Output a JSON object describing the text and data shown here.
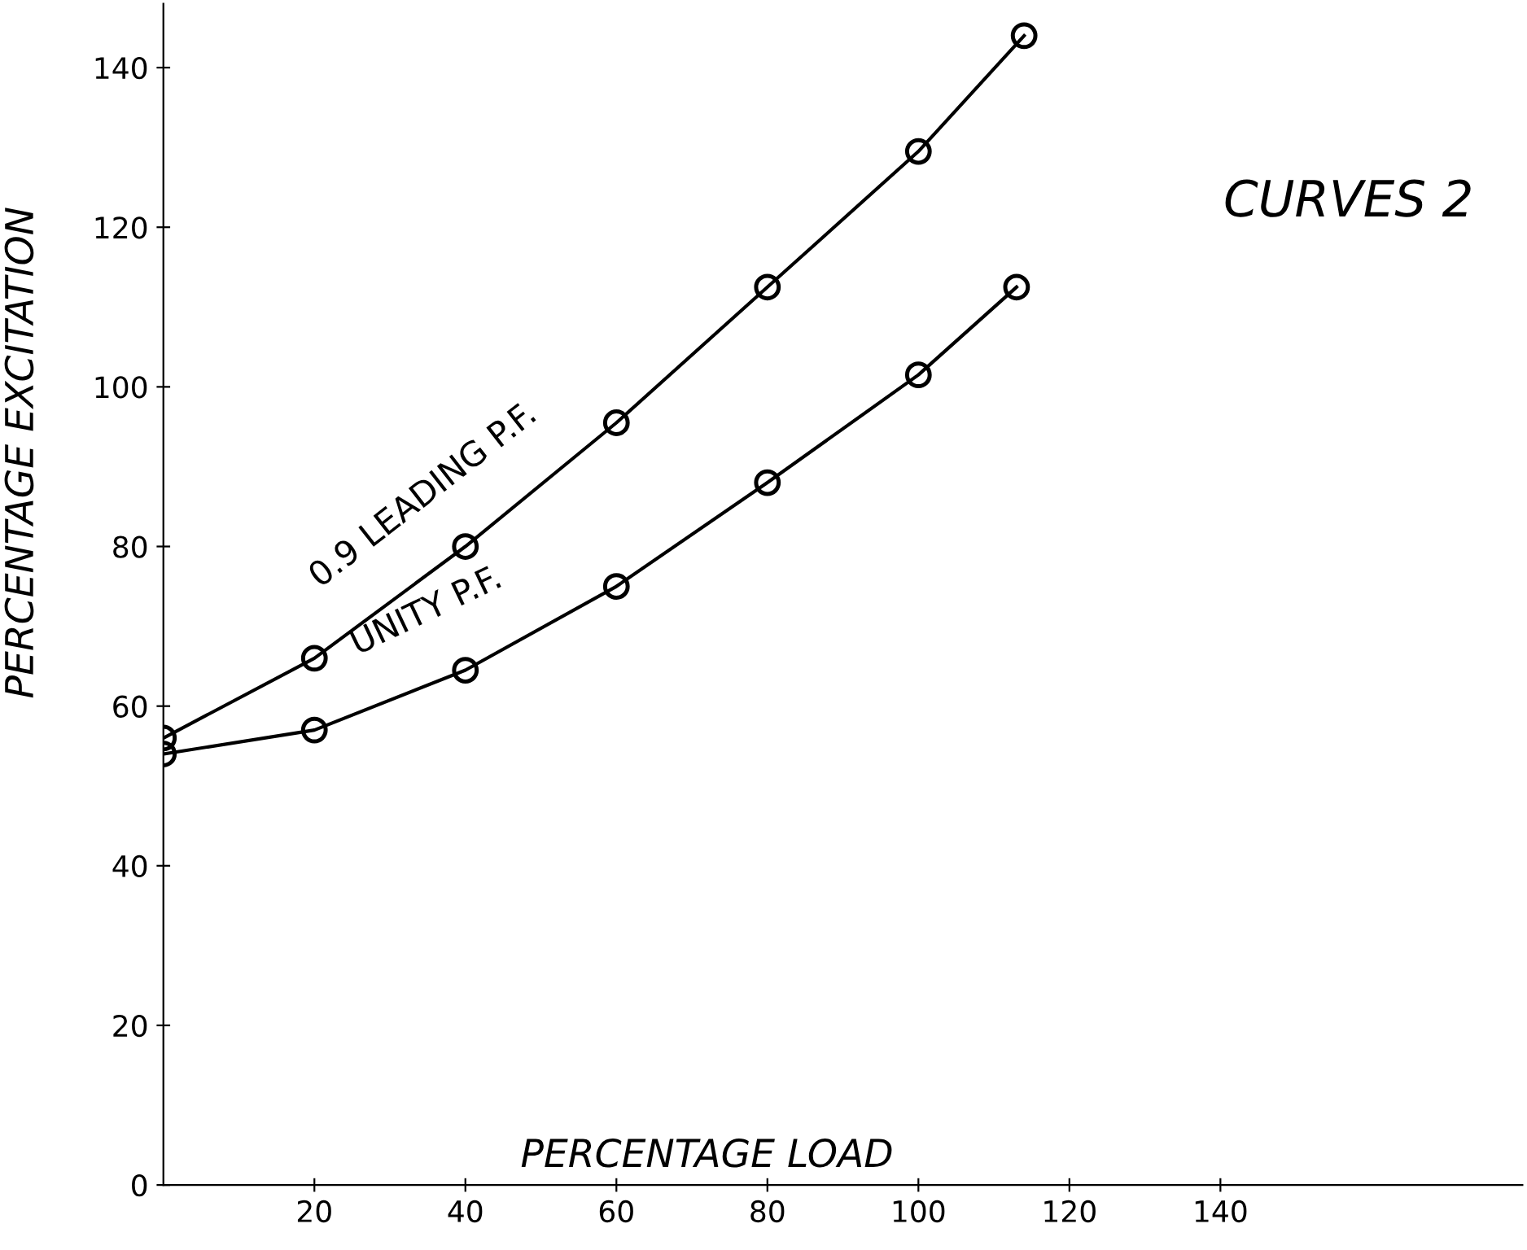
{
  "chart_data": {
    "type": "line",
    "xlabel": "PERCENTAGE LOAD",
    "ylabel": "PERCENTAGE EXCITATION",
    "annotations": [
      "CURVES 2"
    ],
    "xlim": [
      0,
      180
    ],
    "ylim": [
      0,
      148
    ],
    "xticks": [
      20,
      40,
      60,
      80,
      100,
      120,
      140
    ],
    "yticks": [
      0,
      20,
      40,
      60,
      80,
      100,
      120,
      140
    ],
    "marker": "circle",
    "line_style": "solid",
    "grid": false,
    "legend": false,
    "series": [
      {
        "name": "0.9 LEADING P.F.",
        "color": "#000000",
        "x": [
          0,
          20,
          40,
          60,
          80,
          100,
          114
        ],
        "values": [
          56,
          66,
          80,
          95.5,
          112.5,
          129.5,
          144
        ]
      },
      {
        "name": "UNITY P.F.",
        "color": "#000000",
        "x": [
          0,
          20,
          40,
          60,
          80,
          100,
          113
        ],
        "values": [
          54,
          57,
          64.5,
          75,
          88,
          101.5,
          112.5
        ]
      }
    ]
  }
}
